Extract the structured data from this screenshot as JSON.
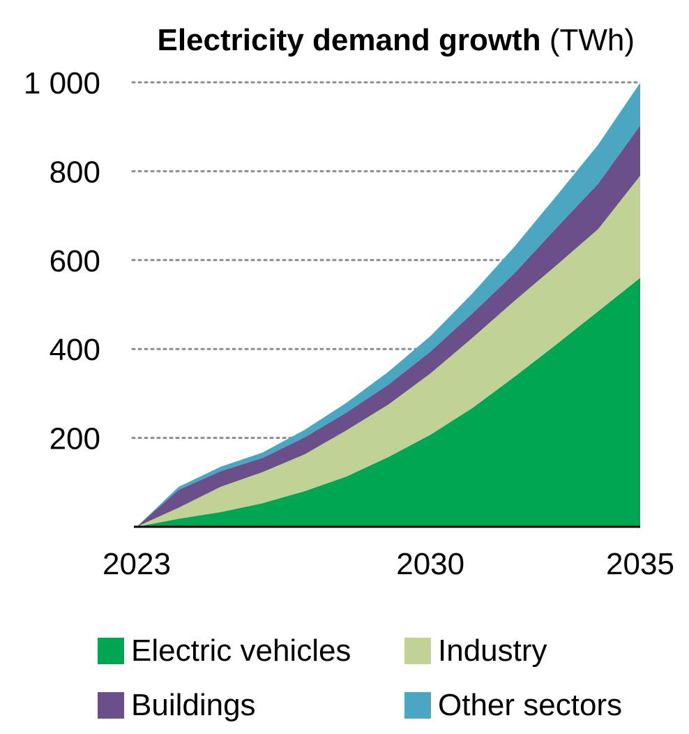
{
  "chart_data": {
    "type": "area",
    "title": "Electricity demand growth",
    "title_unit": "(TWh)",
    "x": [
      2023,
      2024,
      2025,
      2026,
      2027,
      2028,
      2029,
      2030,
      2031,
      2032,
      2033,
      2034,
      2035
    ],
    "x_ticks": [
      "2023",
      "2030",
      "2035"
    ],
    "y_ticks": [
      "200",
      "400",
      "600",
      "800",
      "1 000"
    ],
    "y_tick_values": [
      200,
      400,
      600,
      800,
      1000
    ],
    "ylim": [
      0,
      1000
    ],
    "grid": "dotted horizontal",
    "legend_position": "bottom",
    "stacked": true,
    "series": [
      {
        "name": "Electric vehicles",
        "color": "#00a651",
        "values": [
          0,
          18,
          33,
          53,
          80,
          113,
          157,
          207,
          267,
          337,
          410,
          485,
          560
        ]
      },
      {
        "name": "Industry",
        "color": "#c0d394",
        "values": [
          0,
          25,
          57,
          70,
          83,
          104,
          118,
          138,
          158,
          171,
          178,
          185,
          230
        ]
      },
      {
        "name": "Buildings",
        "color": "#6a4f8b",
        "values": [
          0,
          40,
          35,
          32,
          38,
          40,
          45,
          49,
          55,
          62,
          84,
          102,
          113
        ]
      },
      {
        "name": "Other sectors",
        "color": "#4aa6c1",
        "values": [
          0,
          7,
          10,
          12,
          17,
          22,
          29,
          35,
          45,
          60,
          72,
          88,
          96
        ]
      }
    ]
  }
}
